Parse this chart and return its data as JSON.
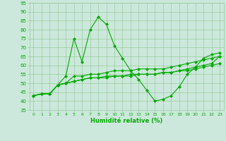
{
  "background_color": "#cce8dc",
  "grid_color": "#99cc99",
  "line_color": "#00aa00",
  "marker_color": "#00aa00",
  "xlabel": "Humidité relative (%)",
  "xlabel_color": "#00aa00",
  "tick_label_color": "#00aa00",
  "ylim": [
    35,
    95
  ],
  "xlim": [
    -0.5,
    23.5
  ],
  "yticks": [
    35,
    40,
    45,
    50,
    55,
    60,
    65,
    70,
    75,
    80,
    85,
    90,
    95
  ],
  "xticks": [
    0,
    1,
    2,
    3,
    4,
    5,
    6,
    7,
    8,
    9,
    10,
    11,
    12,
    13,
    14,
    15,
    16,
    17,
    18,
    19,
    20,
    21,
    22,
    23
  ],
  "series": [
    [
      43,
      44,
      44,
      49,
      54,
      75,
      62,
      80,
      87,
      83,
      71,
      64,
      57,
      52,
      46,
      40,
      41,
      43,
      48,
      55,
      59,
      64,
      66,
      67
    ],
    [
      43,
      44,
      44,
      49,
      50,
      54,
      54,
      55,
      55,
      56,
      57,
      57,
      57,
      58,
      58,
      58,
      58,
      59,
      60,
      61,
      62,
      63,
      64,
      65
    ],
    [
      43,
      44,
      44,
      49,
      50,
      51,
      52,
      53,
      53,
      54,
      54,
      54,
      55,
      55,
      55,
      55,
      56,
      56,
      57,
      57,
      58,
      59,
      60,
      61
    ],
    [
      43,
      44,
      44,
      49,
      50,
      51,
      52,
      53,
      53,
      53,
      54,
      54,
      54,
      55,
      55,
      55,
      56,
      56,
      57,
      58,
      59,
      60,
      61,
      65
    ]
  ]
}
